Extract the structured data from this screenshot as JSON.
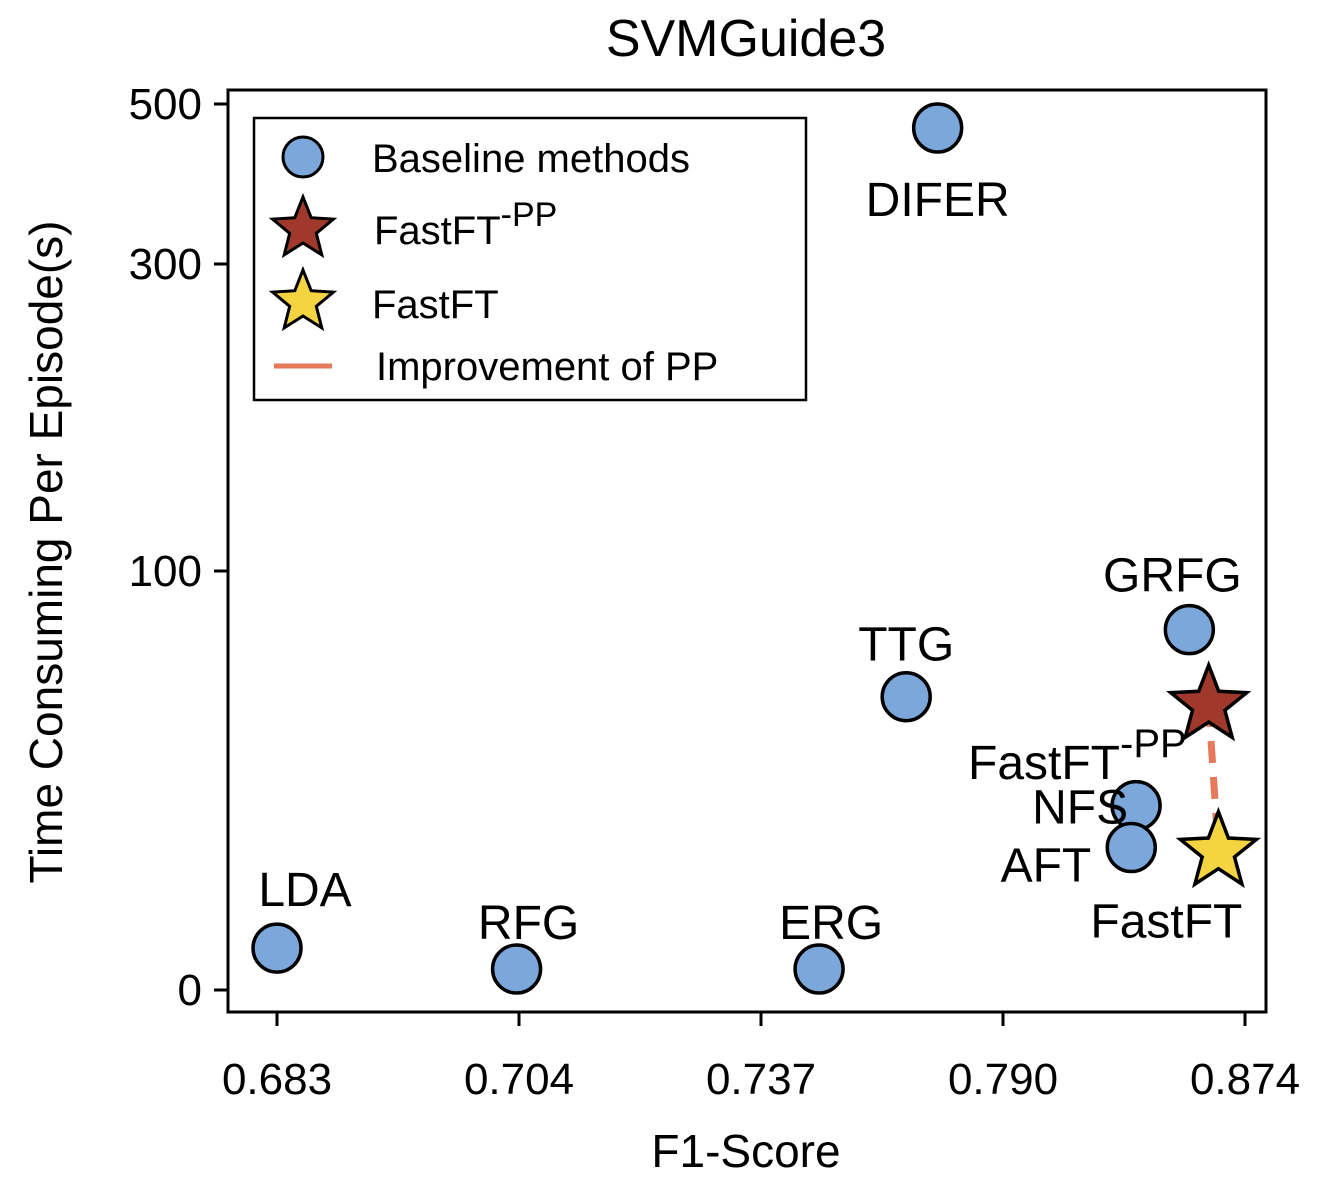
{
  "chart_data": {
    "type": "scatter",
    "title": "SVMGuide3",
    "xlabel": "F1-Score",
    "ylabel": "Time Consuming Per Episode(s)",
    "x_ticks": [
      "0.683",
      "0.704",
      "0.737",
      "0.790",
      "0.874"
    ],
    "y_ticks": [
      "0",
      "100",
      "300",
      "500"
    ],
    "y_tick_values": [
      0,
      100,
      300,
      500
    ],
    "ylim": [
      -5,
      510
    ],
    "series": [
      {
        "name": "Baseline methods",
        "marker": "circle",
        "color": "#7BA7DA",
        "points": [
          {
            "label": "LDA",
            "x_index": 0.0,
            "y": 10
          },
          {
            "label": "RFG",
            "x_index": 0.99,
            "y": 5
          },
          {
            "label": "ERG",
            "x_index": 2.24,
            "y": 5
          },
          {
            "label": "TTG",
            "x_index": 2.6,
            "y": 70
          },
          {
            "label": "DIFER",
            "x_index": 2.73,
            "y": 470
          },
          {
            "label": "NFS",
            "x_index": 3.55,
            "y": 44
          },
          {
            "label": "AFT",
            "x_index": 3.53,
            "y": 34
          },
          {
            "label": "GRFG",
            "x_index": 3.77,
            "y": 86
          }
        ]
      },
      {
        "name": "FastFT",
        "name_sup": "-PP",
        "marker": "star",
        "color": "#A0392B",
        "points": [
          {
            "label": "FastFT",
            "label_sup": "-PP",
            "x_index": 3.85,
            "y": 68
          }
        ]
      },
      {
        "name": "FastFT",
        "marker": "star",
        "color": "#F5D442",
        "points": [
          {
            "label": "FastFT",
            "x_index": 3.89,
            "y": 33
          }
        ]
      }
    ],
    "improvement": {
      "name": "Improvement of PP",
      "color": "#E5795A",
      "from": {
        "x_index": 3.85,
        "y": 68
      },
      "to": {
        "x_index": 3.89,
        "y": 33
      }
    },
    "legend_position": "top-left"
  }
}
